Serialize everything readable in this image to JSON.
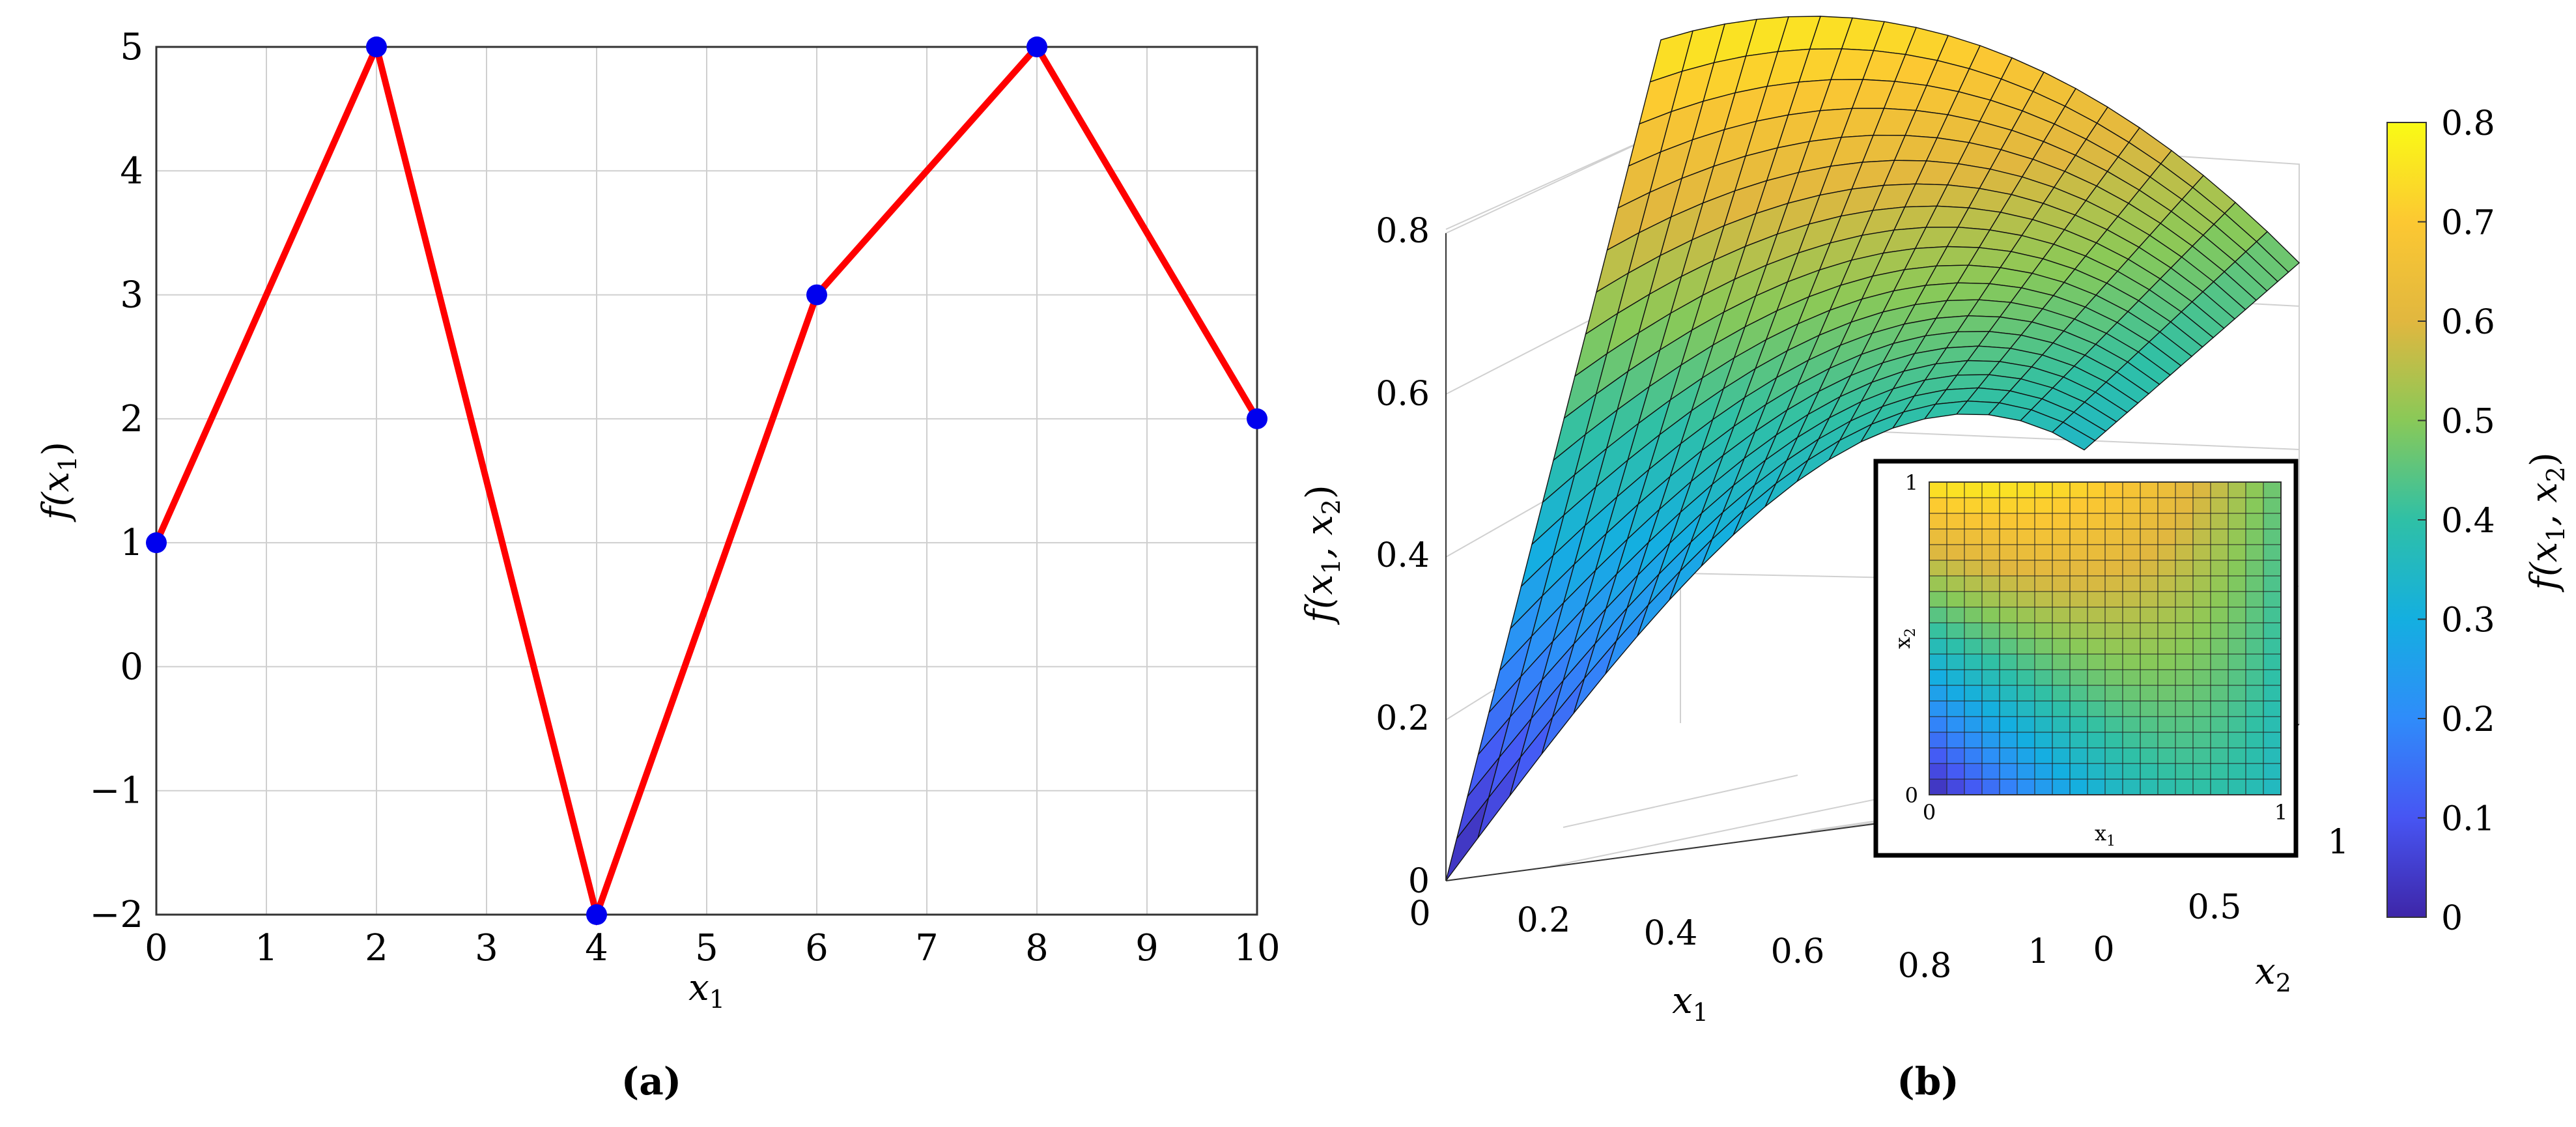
{
  "chart_data": [
    {
      "type": "line",
      "panel_label": "(a)",
      "xlabel": "x",
      "xlabel_sub": "1",
      "ylabel": "f(x",
      "ylabel_sub": "1",
      "ylabel_close": ")",
      "xlim": [
        0,
        10
      ],
      "ylim": [
        -2,
        5
      ],
      "xticks": [
        "0",
        "1",
        "2",
        "3",
        "4",
        "5",
        "6",
        "7",
        "8",
        "9",
        "10"
      ],
      "yticks": [
        "−2",
        "−1",
        "0",
        "1",
        "2",
        "3",
        "4",
        "5"
      ],
      "grid": true,
      "series": [
        {
          "x": [
            0,
            2,
            4,
            6,
            8,
            10
          ],
          "y": [
            1,
            5,
            -2,
            3,
            5,
            2
          ],
          "line_color": "#ff0000",
          "marker_color": "#0000ee"
        }
      ]
    },
    {
      "type": "surface",
      "panel_label": "(b)",
      "xlabel": "x",
      "xlabel_sub": "1",
      "ylabel": "x",
      "ylabel_sub": "2",
      "zlabel": "f(x",
      "zlabel_mid": ", x",
      "zlabel_sub1": "1",
      "zlabel_sub2": "2",
      "zlabel_close": ")",
      "xticks": [
        "0",
        "0.2",
        "0.4",
        "0.6",
        "0.8",
        "1"
      ],
      "yticks": [
        "0",
        "0.5",
        "1"
      ],
      "zticks": [
        "0",
        "0.2",
        "0.4",
        "0.6",
        "0.8"
      ],
      "zlim": [
        0,
        0.8
      ],
      "colormap": "parula",
      "colorbar": {
        "label": "f(x",
        "label_mid": ", x",
        "label_sub1": "1",
        "label_sub2": "2",
        "label_close": ")",
        "ticks": [
          "0",
          "0.1",
          "0.2",
          "0.3",
          "0.4",
          "0.5",
          "0.6",
          "0.7",
          "0.8"
        ],
        "range": [
          0,
          0.8
        ]
      },
      "inset": {
        "type": "heatmap",
        "xlabel": "x",
        "xlabel_sub": "1",
        "ylabel": "x",
        "ylabel_sub": "2",
        "xticks": [
          "0",
          "1"
        ],
        "yticks": [
          "0",
          "1"
        ],
        "grid_cells": 20
      }
    }
  ]
}
